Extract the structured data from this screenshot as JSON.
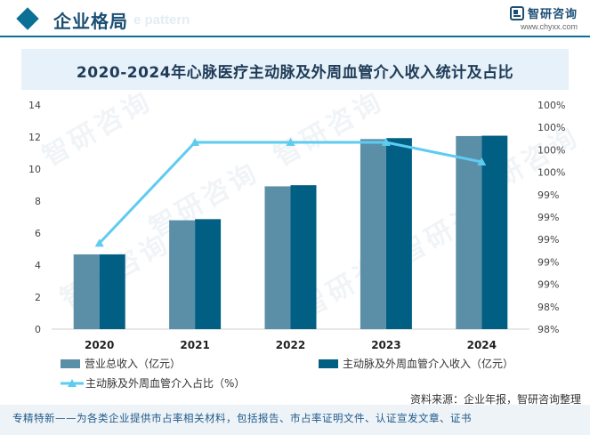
{
  "header": {
    "title": "企业格局",
    "ghost_text": "e pattern",
    "brand_name": "智研咨询",
    "brand_url": "www.chyxx.com"
  },
  "watermark_text": "智研咨询",
  "colors": {
    "bar_total": "#5b8fa8",
    "bar_segment": "#005f83",
    "line": "#5ecbf0",
    "accent": "#0b6f96"
  },
  "chart_data": {
    "type": "bar",
    "title": "2020-2024年心脉医疗主动脉及外周血管介入收入统计及占比",
    "categories": [
      "2020",
      "2021",
      "2022",
      "2023",
      "2024"
    ],
    "series": [
      {
        "name": "营业总收入（亿元）",
        "type": "bar",
        "axis": "left",
        "values": [
          4.67,
          6.8,
          8.92,
          11.87,
          12.06
        ]
      },
      {
        "name": "主动脉及外周血管介入收入（亿元）",
        "type": "bar",
        "axis": "left",
        "values": [
          4.67,
          6.87,
          8.99,
          11.93,
          12.08
        ]
      },
      {
        "name": "主动脉及外周血管介入占比（%）",
        "type": "line",
        "axis": "right",
        "values": [
          98.92,
          100.0,
          100.0,
          100.0,
          99.79
        ]
      }
    ],
    "left_axis": {
      "min": 0,
      "max": 14,
      "ticks": [
        "0",
        "2",
        "4",
        "6",
        "8",
        "10",
        "12",
        "14"
      ]
    },
    "right_axis": {
      "min": 98.0,
      "max": 100.4,
      "ticks": [
        "98%",
        "98%",
        "99%",
        "99%",
        "99%",
        "99%",
        "99%",
        "100%",
        "100%",
        "100%",
        "100%"
      ]
    },
    "legend": [
      "营业总收入（亿元）",
      "主动脉及外周血管介入收入（亿元）",
      "主动脉及外周血管介入占比（%）"
    ]
  },
  "source": "资料来源：企业年报，智研咨询整理",
  "footer": "专精特新——为各类企业提供市占率相关材料，包括报告、市占率证明文件、认证宣发文章、证书"
}
